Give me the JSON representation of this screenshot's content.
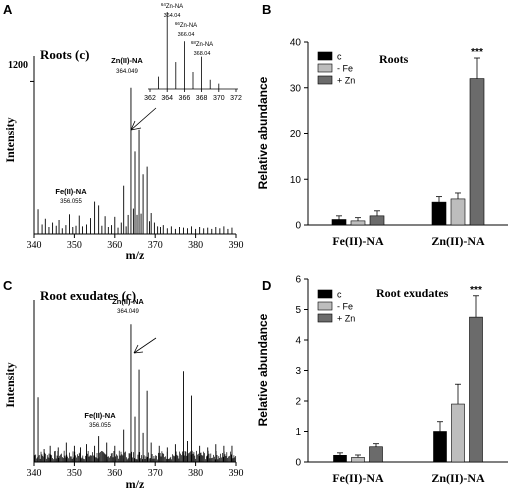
{
  "panels": {
    "A": {
      "letter": "A",
      "title": "Roots (c)",
      "xlabel": "m/z",
      "ylabel": "Intensity",
      "ytick": "1200",
      "peak_labels": [
        {
          "text": "Zn(II)-NA",
          "mz_text": "364.049",
          "mz": 364.049
        },
        {
          "text": "Fe(II)-NA",
          "mz_text": "356.055",
          "mz": 356.055
        }
      ],
      "inset": {
        "labels": [
          {
            "iso": "64",
            "name": "Zn-NA",
            "mz_text": "364.04",
            "mz": 364.04
          },
          {
            "iso": "66",
            "name": "Zn-NA",
            "mz_text": "366.04",
            "mz": 366.04
          },
          {
            "iso": "68",
            "name": "Zn-NA",
            "mz_text": "368.04",
            "mz": 368.04
          }
        ],
        "xticks": [
          "362",
          "364",
          "366",
          "368",
          "370",
          "372"
        ]
      }
    },
    "B": {
      "letter": "B",
      "title": "Roots",
      "ylabel": "Relative abundance"
    },
    "C": {
      "letter": "C",
      "title": "Root exudates (c)",
      "xlabel": "m/z",
      "ylabel": "Intensity",
      "peak_labels": [
        {
          "text": "Zn(II)-NA",
          "mz_text": "364.049",
          "mz": 364.049
        },
        {
          "text": "Fe(II)-NA",
          "mz_text": "356.055",
          "mz": 356.055
        }
      ]
    },
    "D": {
      "letter": "D",
      "title": "Root exudates",
      "ylabel": "Relative abundance"
    }
  },
  "chart_data": [
    {
      "panel": "A",
      "type": "bar",
      "subtype": "mass-spectrum",
      "title": "Roots (c)",
      "xlabel": "m/z",
      "ylabel": "Intensity",
      "xlim": [
        340,
        390
      ],
      "xticks": [
        340,
        350,
        360,
        370,
        380,
        390
      ],
      "ylim": [
        0,
        1400
      ],
      "yticks": [
        1200
      ],
      "peaks": [
        {
          "x": 341.0,
          "y": 195
        },
        {
          "x": 342.0,
          "y": 75
        },
        {
          "x": 342.8,
          "y": 120
        },
        {
          "x": 343.7,
          "y": 55
        },
        {
          "x": 344.6,
          "y": 90
        },
        {
          "x": 345.5,
          "y": 65
        },
        {
          "x": 346.2,
          "y": 110
        },
        {
          "x": 347.0,
          "y": 45
        },
        {
          "x": 347.9,
          "y": 70
        },
        {
          "x": 348.8,
          "y": 155
        },
        {
          "x": 349.6,
          "y": 55
        },
        {
          "x": 350.4,
          "y": 65
        },
        {
          "x": 351.2,
          "y": 145
        },
        {
          "x": 352.0,
          "y": 60
        },
        {
          "x": 353.0,
          "y": 75
        },
        {
          "x": 354.0,
          "y": 125
        },
        {
          "x": 355.0,
          "y": 255
        },
        {
          "x": 356.0,
          "y": 225
        },
        {
          "x": 356.8,
          "y": 65
        },
        {
          "x": 357.6,
          "y": 140
        },
        {
          "x": 358.4,
          "y": 55
        },
        {
          "x": 359.2,
          "y": 70
        },
        {
          "x": 360.0,
          "y": 135
        },
        {
          "x": 360.8,
          "y": 50
        },
        {
          "x": 361.6,
          "y": 90
        },
        {
          "x": 362.2,
          "y": 380
        },
        {
          "x": 362.8,
          "y": 60
        },
        {
          "x": 363.3,
          "y": 150
        },
        {
          "x": 364.0,
          "y": 1150
        },
        {
          "x": 364.6,
          "y": 200
        },
        {
          "x": 365.0,
          "y": 650
        },
        {
          "x": 365.5,
          "y": 150
        },
        {
          "x": 366.0,
          "y": 820
        },
        {
          "x": 366.5,
          "y": 160
        },
        {
          "x": 367.0,
          "y": 470
        },
        {
          "x": 368.0,
          "y": 530
        },
        {
          "x": 368.6,
          "y": 100
        },
        {
          "x": 369.0,
          "y": 165
        },
        {
          "x": 369.8,
          "y": 90
        },
        {
          "x": 370.6,
          "y": 60
        },
        {
          "x": 371.3,
          "y": 55
        },
        {
          "x": 372.0,
          "y": 70
        },
        {
          "x": 373.0,
          "y": 45
        },
        {
          "x": 374.0,
          "y": 60
        },
        {
          "x": 375.0,
          "y": 40
        },
        {
          "x": 376.0,
          "y": 55
        },
        {
          "x": 377.0,
          "y": 50
        },
        {
          "x": 378.0,
          "y": 45
        },
        {
          "x": 379.0,
          "y": 60
        },
        {
          "x": 380.0,
          "y": 40
        },
        {
          "x": 381.0,
          "y": 55
        },
        {
          "x": 382.0,
          "y": 45
        },
        {
          "x": 383.0,
          "y": 50
        },
        {
          "x": 384.0,
          "y": 40
        },
        {
          "x": 385.0,
          "y": 55
        },
        {
          "x": 386.0,
          "y": 45
        },
        {
          "x": 387.0,
          "y": 60
        },
        {
          "x": 388.0,
          "y": 40
        },
        {
          "x": 389.0,
          "y": 50
        }
      ]
    },
    {
      "panel": "A-inset",
      "type": "bar",
      "subtype": "mass-spectrum",
      "xlim": [
        362,
        372
      ],
      "xticks": [
        362,
        364,
        366,
        368,
        370,
        372
      ],
      "peaks": [
        {
          "x": 363.0,
          "y": 0.16
        },
        {
          "x": 364.0,
          "y": 1.0
        },
        {
          "x": 365.0,
          "y": 0.35
        },
        {
          "x": 366.0,
          "y": 0.62
        },
        {
          "x": 367.0,
          "y": 0.22
        },
        {
          "x": 368.0,
          "y": 0.42
        },
        {
          "x": 369.0,
          "y": 0.12
        },
        {
          "x": 370.0,
          "y": 0.07
        }
      ]
    },
    {
      "panel": "B",
      "type": "bar",
      "title": "Roots",
      "ylabel": "Relative abundance",
      "categories": [
        "Fe(II)-NA",
        "Zn(II)-NA"
      ],
      "ylim": [
        0,
        40
      ],
      "yticks": [
        0,
        10,
        20,
        30,
        40
      ],
      "series": [
        {
          "name": "c",
          "color": "#000000",
          "values": [
            1.2,
            5.0
          ],
          "errors": [
            0.8,
            1.2
          ]
        },
        {
          "name": "- Fe",
          "color": "#bdbdbd",
          "values": [
            0.9,
            5.7
          ],
          "errors": [
            0.7,
            1.3
          ]
        },
        {
          "name": "+ Zn",
          "color": "#6b6b6b",
          "values": [
            2.0,
            32.0
          ],
          "errors": [
            1.1,
            4.5
          ]
        }
      ],
      "annotations": [
        {
          "category": "Zn(II)-NA",
          "series": "+ Zn",
          "text": "***"
        }
      ],
      "legend": "top-left"
    },
    {
      "panel": "C",
      "type": "bar",
      "subtype": "mass-spectrum",
      "title": "Root exudates (c)",
      "xlabel": "m/z",
      "ylabel": "Intensity",
      "xlim": [
        340,
        390
      ],
      "xticks": [
        340,
        350,
        360,
        370,
        380,
        390
      ],
      "ylim": [
        0,
        1.0
      ],
      "peaks": [
        {
          "x": 341.0,
          "y": 0.4
        },
        {
          "x": 342.5,
          "y": 0.08
        },
        {
          "x": 344.0,
          "y": 0.1
        },
        {
          "x": 346.0,
          "y": 0.09
        },
        {
          "x": 348.0,
          "y": 0.12
        },
        {
          "x": 350.0,
          "y": 0.1
        },
        {
          "x": 351.5,
          "y": 0.09
        },
        {
          "x": 353.0,
          "y": 0.11
        },
        {
          "x": 355.0,
          "y": 0.1
        },
        {
          "x": 356.0,
          "y": 0.16
        },
        {
          "x": 358.0,
          "y": 0.12
        },
        {
          "x": 360.0,
          "y": 0.1
        },
        {
          "x": 362.2,
          "y": 0.2
        },
        {
          "x": 364.0,
          "y": 0.85
        },
        {
          "x": 365.0,
          "y": 0.28
        },
        {
          "x": 366.0,
          "y": 0.57
        },
        {
          "x": 367.0,
          "y": 0.18
        },
        {
          "x": 368.0,
          "y": 0.44
        },
        {
          "x": 369.0,
          "y": 0.12
        },
        {
          "x": 371.0,
          "y": 0.1
        },
        {
          "x": 373.0,
          "y": 0.09
        },
        {
          "x": 375.0,
          "y": 0.11
        },
        {
          "x": 377.0,
          "y": 0.56
        },
        {
          "x": 378.0,
          "y": 0.13
        },
        {
          "x": 379.0,
          "y": 0.41
        },
        {
          "x": 381.0,
          "y": 0.1
        },
        {
          "x": 383.0,
          "y": 0.09
        },
        {
          "x": 385.0,
          "y": 0.11
        },
        {
          "x": 387.0,
          "y": 0.1
        },
        {
          "x": 389.0,
          "y": 0.1
        }
      ],
      "baseline_noise": 0.05
    },
    {
      "panel": "D",
      "type": "bar",
      "title": "Root exudates",
      "ylabel": "Relative abundance",
      "categories": [
        "Fe(II)-NA",
        "Zn(II)-NA"
      ],
      "ylim": [
        0,
        6
      ],
      "yticks": [
        0,
        1,
        2,
        3,
        4,
        5,
        6
      ],
      "series": [
        {
          "name": "c",
          "color": "#000000",
          "values": [
            0.22,
            1.0
          ],
          "errors": [
            0.08,
            0.32
          ]
        },
        {
          "name": "- Fe",
          "color": "#bdbdbd",
          "values": [
            0.15,
            1.9
          ],
          "errors": [
            0.08,
            0.65
          ]
        },
        {
          "name": "+ Zn",
          "color": "#6b6b6b",
          "values": [
            0.5,
            4.75
          ],
          "errors": [
            0.1,
            0.7
          ]
        }
      ],
      "annotations": [
        {
          "category": "Zn(II)-NA",
          "series": "+ Zn",
          "text": "***"
        }
      ],
      "legend": "top-left"
    }
  ]
}
